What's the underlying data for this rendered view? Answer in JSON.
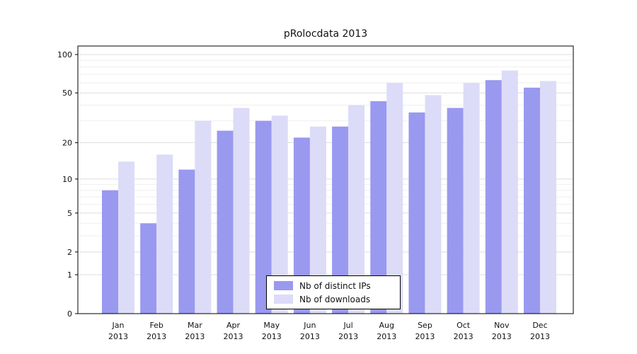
{
  "chart_data": {
    "type": "bar",
    "title": "pRolocdata 2013",
    "categories": [
      "Jan",
      "Feb",
      "Mar",
      "Apr",
      "May",
      "Jun",
      "Jul",
      "Aug",
      "Sep",
      "Oct",
      "Nov",
      "Dec"
    ],
    "year_label": "2013",
    "series": [
      {
        "name": "Nb of distinct IPs",
        "color": "#9999f0",
        "values": [
          8,
          4,
          12,
          25,
          30,
          22,
          27,
          43,
          35,
          38,
          63,
          55
        ]
      },
      {
        "name": "Nb of downloads",
        "color": "#dcdcf8",
        "values": [
          14,
          16,
          30,
          38,
          33,
          27,
          40,
          60,
          48,
          60,
          75,
          62
        ]
      }
    ],
    "y_ticks": [
      0,
      1,
      2,
      5,
      10,
      20,
      50,
      100
    ],
    "y_scale": "log10(1+x)",
    "ylim": [
      0,
      116
    ],
    "grid": true,
    "legend_position": "bottom-center",
    "colors": {
      "background": "#ffffff",
      "grid_major": "#dedede",
      "grid_minor": "#efefef",
      "axis": "#000000",
      "text": "#111111"
    }
  }
}
